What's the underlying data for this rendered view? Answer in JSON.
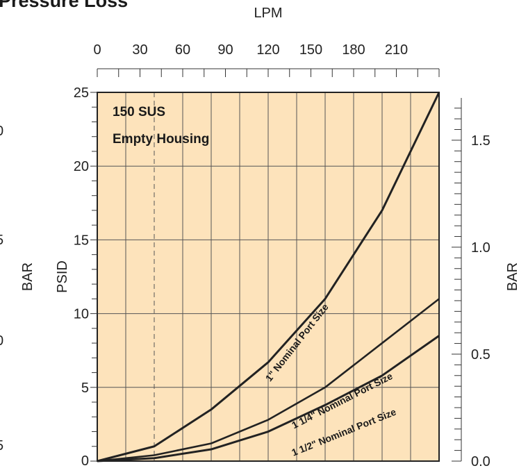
{
  "chart_data": {
    "type": "line",
    "title": "Pressure Loss",
    "left_axis": {
      "label": "PSID",
      "range": [
        0,
        25
      ],
      "ticks": [
        "0",
        "5",
        "10",
        "15",
        "20",
        "25"
      ],
      "minor_step": 1
    },
    "left_outer_axis": {
      "label": "BAR",
      "tick_fragments": [
        "0",
        "5",
        "0",
        "5"
      ]
    },
    "right_axis": {
      "label": "BAR",
      "range_psid_equivalent": [
        0,
        25
      ],
      "ticks": [
        "0.0",
        "0.5",
        "1.0",
        "1.5"
      ],
      "tick_values_bar": [
        0.0,
        0.5,
        1.0,
        1.5
      ]
    },
    "top_axis": {
      "label": "LPM",
      "range": [
        0,
        240
      ],
      "ticks": [
        "0",
        "30",
        "60",
        "90",
        "120",
        "150",
        "180",
        "210"
      ],
      "tick_values": [
        0,
        30,
        60,
        90,
        120,
        150,
        180,
        210
      ]
    },
    "x_range": [
      0,
      240
    ],
    "grid": true,
    "background_color": "#fde3bb",
    "line_color": "#222222",
    "annotations": [
      "150 SUS",
      "Empty Housing"
    ],
    "series": [
      {
        "name": "1\" Nominal Port Size",
        "x": [
          0,
          40,
          80,
          120,
          160,
          200,
          240
        ],
        "y": [
          0,
          1,
          3.5,
          6.7,
          11,
          17,
          25
        ]
      },
      {
        "name": "1 1/4\" Nominal Port Size",
        "x": [
          0,
          40,
          80,
          120,
          160,
          200,
          240
        ],
        "y": [
          0,
          0.4,
          1.2,
          2.8,
          5,
          8,
          11
        ]
      },
      {
        "name": "1 1/2\" Nominal Port Size",
        "x": [
          0,
          40,
          80,
          120,
          160,
          200,
          240
        ],
        "y": [
          0,
          0.2,
          0.8,
          2,
          3.8,
          5.8,
          8.5
        ]
      }
    ]
  }
}
